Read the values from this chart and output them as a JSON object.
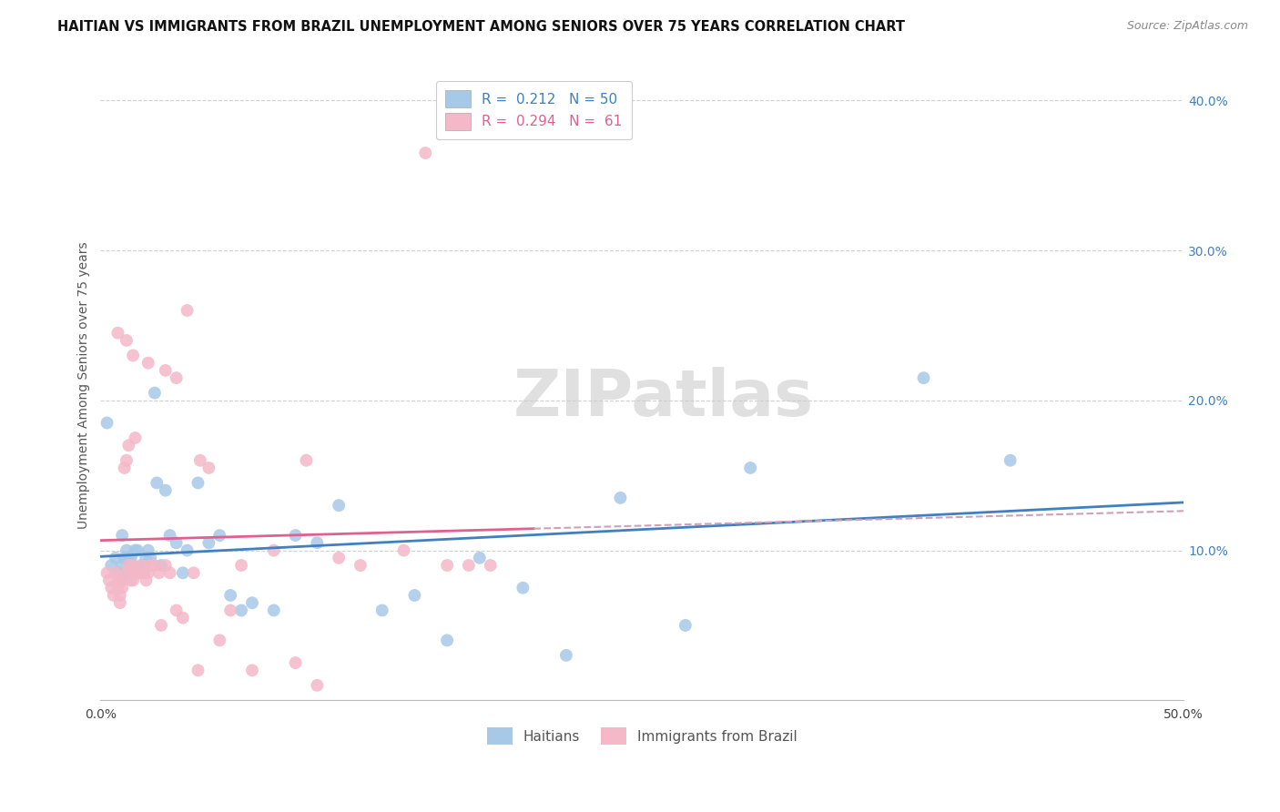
{
  "title": "HAITIAN VS IMMIGRANTS FROM BRAZIL UNEMPLOYMENT AMONG SENIORS OVER 75 YEARS CORRELATION CHART",
  "source": "Source: ZipAtlas.com",
  "ylabel": "Unemployment Among Seniors over 75 years",
  "xlim": [
    0.0,
    0.5
  ],
  "ylim": [
    0.0,
    0.42
  ],
  "xticks": [
    0.0,
    0.1,
    0.2,
    0.3,
    0.4,
    0.5
  ],
  "xticklabels": [
    "0.0%",
    "",
    "",
    "",
    "",
    "50.0%"
  ],
  "yticks": [
    0.0,
    0.1,
    0.2,
    0.3,
    0.4
  ],
  "yticklabels": [
    "",
    "10.0%",
    "20.0%",
    "30.0%",
    "40.0%"
  ],
  "blue_color": "#a8c8e8",
  "pink_color": "#f4b8c8",
  "blue_line_color": "#4080c0",
  "pink_line_color": "#e06090",
  "pink_dash_color": "#d0a0b8",
  "axis_label_color": "#4080c0",
  "R_blue": "0.212",
  "N_blue": "50",
  "R_pink": "0.294",
  "N_pink": "61",
  "legend_label_blue": "Haitians",
  "legend_label_pink": "Immigrants from Brazil",
  "watermark": "ZIPatlas",
  "blue_scatter_x": [
    0.003,
    0.005,
    0.007,
    0.008,
    0.009,
    0.01,
    0.01,
    0.011,
    0.012,
    0.013,
    0.013,
    0.014,
    0.015,
    0.016,
    0.017,
    0.018,
    0.019,
    0.02,
    0.021,
    0.022,
    0.023,
    0.025,
    0.026,
    0.028,
    0.03,
    0.032,
    0.035,
    0.038,
    0.04,
    0.045,
    0.05,
    0.055,
    0.06,
    0.065,
    0.07,
    0.08,
    0.09,
    0.1,
    0.11,
    0.13,
    0.145,
    0.16,
    0.175,
    0.195,
    0.215,
    0.24,
    0.27,
    0.3,
    0.38,
    0.42
  ],
  "blue_scatter_y": [
    0.185,
    0.09,
    0.095,
    0.085,
    0.08,
    0.11,
    0.09,
    0.095,
    0.1,
    0.085,
    0.095,
    0.095,
    0.09,
    0.1,
    0.1,
    0.085,
    0.09,
    0.09,
    0.095,
    0.1,
    0.095,
    0.205,
    0.145,
    0.09,
    0.14,
    0.11,
    0.105,
    0.085,
    0.1,
    0.145,
    0.105,
    0.11,
    0.07,
    0.06,
    0.065,
    0.06,
    0.11,
    0.105,
    0.13,
    0.06,
    0.07,
    0.04,
    0.095,
    0.075,
    0.03,
    0.135,
    0.05,
    0.155,
    0.215,
    0.16
  ],
  "pink_scatter_x": [
    0.003,
    0.004,
    0.005,
    0.006,
    0.007,
    0.008,
    0.008,
    0.009,
    0.009,
    0.01,
    0.01,
    0.011,
    0.012,
    0.012,
    0.013,
    0.013,
    0.014,
    0.015,
    0.015,
    0.016,
    0.016,
    0.017,
    0.018,
    0.019,
    0.02,
    0.021,
    0.022,
    0.023,
    0.025,
    0.027,
    0.028,
    0.03,
    0.032,
    0.035,
    0.038,
    0.04,
    0.043,
    0.046,
    0.05,
    0.055,
    0.06,
    0.065,
    0.07,
    0.08,
    0.09,
    0.095,
    0.1,
    0.11,
    0.12,
    0.14,
    0.15,
    0.16,
    0.17,
    0.18,
    0.008,
    0.012,
    0.015,
    0.022,
    0.03,
    0.035,
    0.045
  ],
  "pink_scatter_y": [
    0.085,
    0.08,
    0.075,
    0.07,
    0.085,
    0.075,
    0.08,
    0.07,
    0.065,
    0.08,
    0.075,
    0.155,
    0.16,
    0.085,
    0.09,
    0.17,
    0.08,
    0.09,
    0.08,
    0.175,
    0.085,
    0.085,
    0.085,
    0.09,
    0.085,
    0.08,
    0.085,
    0.09,
    0.09,
    0.085,
    0.05,
    0.09,
    0.085,
    0.06,
    0.055,
    0.26,
    0.085,
    0.16,
    0.155,
    0.04,
    0.06,
    0.09,
    0.02,
    0.1,
    0.025,
    0.16,
    0.01,
    0.095,
    0.09,
    0.1,
    0.365,
    0.09,
    0.09,
    0.09,
    0.245,
    0.24,
    0.23,
    0.225,
    0.22,
    0.215,
    0.02
  ]
}
